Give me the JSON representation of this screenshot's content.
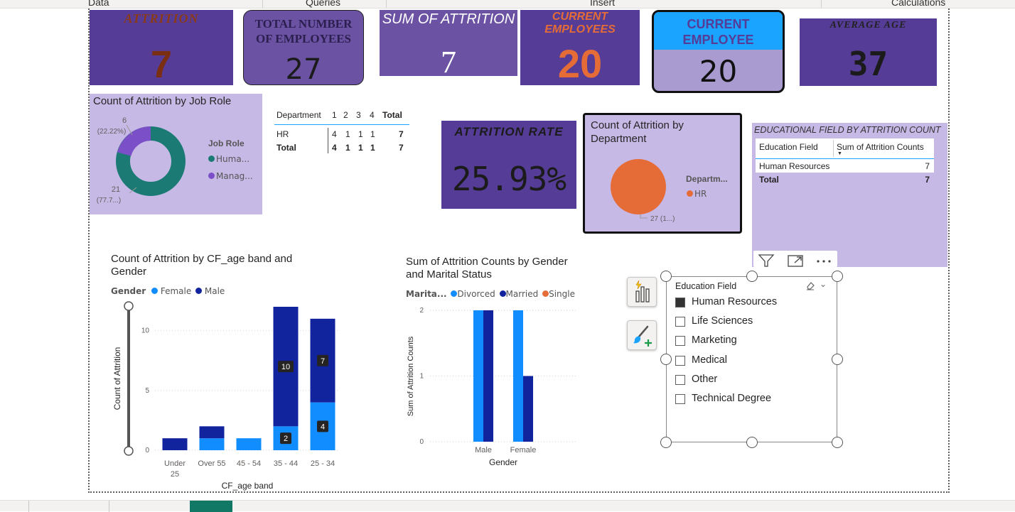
{
  "ribbon": {
    "groups": [
      "Data",
      "Queries",
      "Insert",
      "Calculations"
    ]
  },
  "colors": {
    "purple_dark": "#553c96",
    "purple_mid": "#6b52a3",
    "purple_light": "#c7b9e6",
    "teal": "#1b7b74",
    "violet": "#7b4fc7",
    "orange": "#e66c37",
    "blue_light": "#118dff",
    "blue_dark": "#12239e",
    "cyan_header": "#1aa3ff"
  },
  "cards": {
    "attrition": {
      "title": "ATTRITION",
      "value": "7"
    },
    "total_employees": {
      "title": "TOTAL NUMBER OF EMPLOYEES",
      "value": "27"
    },
    "sum_attrition": {
      "title": "SUM OF ATTRITION",
      "value": "7"
    },
    "current_employees_orange": {
      "title": "CURRENT EMPLOYEES",
      "value": "20"
    },
    "current_employee_boxed": {
      "title": "CURRENT EMPLOYEE",
      "value": "20"
    },
    "average_age": {
      "title": "AVERAGE AGE",
      "value": "37"
    },
    "attrition_rate": {
      "title": "ATTRITION RATE",
      "value": "25.93%"
    }
  },
  "donut": {
    "title": "Count of Attrition by Job Role",
    "legend_title": "Job Role",
    "legend": [
      "Huma...",
      "Manag..."
    ],
    "label_top": "6",
    "label_top_pct": "(22.22%)",
    "label_bottom": "21",
    "label_bottom_pct": "(77.7...)"
  },
  "matrix": {
    "headers": [
      "Department",
      "1",
      "2",
      "3",
      "4",
      "Total"
    ],
    "rows": [
      {
        "cells": [
          "HR",
          "4",
          "1",
          "1",
          "1",
          "7"
        ]
      },
      {
        "cells": [
          "Total",
          "4",
          "1",
          "1",
          "1",
          "7"
        ]
      }
    ]
  },
  "pie": {
    "title": "Count of Attrition by Department",
    "legend_title": "Departm...",
    "legend": [
      "HR"
    ],
    "label": "27 (1...)"
  },
  "edu_table": {
    "title": "EDUCATIONAL FIELD BY ATTRITION COUNT",
    "headers": [
      "Education Field",
      "Sum of Attrition Counts"
    ],
    "rows": [
      {
        "field": "Human Resources",
        "value": "7"
      },
      {
        "field": "Total",
        "value": "7"
      }
    ]
  },
  "slicer": {
    "title": "Education Field",
    "items": [
      {
        "label": "Human Resources",
        "checked": true
      },
      {
        "label": "Life Sciences",
        "checked": false
      },
      {
        "label": "Marketing",
        "checked": false
      },
      {
        "label": "Medical",
        "checked": false
      },
      {
        "label": "Other",
        "checked": false
      },
      {
        "label": "Technical Degree",
        "checked": false
      }
    ]
  },
  "chart_data": [
    {
      "type": "bar",
      "stacked": true,
      "title": "Count of Attrition by CF_age band and Gender",
      "xlabel": "CF_age band",
      "ylabel": "Count of Attrition",
      "legend_title": "Gender",
      "categories": [
        "Under 25",
        "Over 55",
        "45 - 54",
        "35 - 44",
        "25 - 34"
      ],
      "series": [
        {
          "name": "Female",
          "color": "#118dff",
          "values": [
            0,
            1,
            1,
            2,
            4
          ]
        },
        {
          "name": "Male",
          "color": "#12239e",
          "values": [
            1,
            1,
            0,
            10,
            7
          ]
        }
      ],
      "data_labels": [
        {
          "category": "35 - 44",
          "series": "Male",
          "text": "10"
        },
        {
          "category": "35 - 44",
          "series": "Female",
          "text": "2"
        },
        {
          "category": "25 - 34",
          "series": "Male",
          "text": "7"
        },
        {
          "category": "25 - 34",
          "series": "Female",
          "text": "4"
        }
      ],
      "yticks": [
        "0",
        "5",
        "10"
      ],
      "ylim": [
        0,
        12
      ],
      "grid": true,
      "legend_position": "top-left"
    },
    {
      "type": "bar",
      "stacked": false,
      "title": "Sum of Attrition Counts by Gender and Marital Status",
      "xlabel": "Gender",
      "ylabel": "Sum of Attrition Counts",
      "legend_title": "Marita...",
      "categories": [
        "Male",
        "Female"
      ],
      "series": [
        {
          "name": "Divorced",
          "color": "#118dff",
          "values": [
            2,
            2
          ]
        },
        {
          "name": "Married",
          "color": "#12239e",
          "values": [
            2,
            1
          ]
        },
        {
          "name": "Single",
          "color": "#e66c37",
          "values": [
            0,
            0
          ]
        }
      ],
      "yticks": [
        "0",
        "1",
        "2"
      ],
      "ylim": [
        0,
        2
      ],
      "grid": true,
      "legend_position": "top-left"
    }
  ]
}
